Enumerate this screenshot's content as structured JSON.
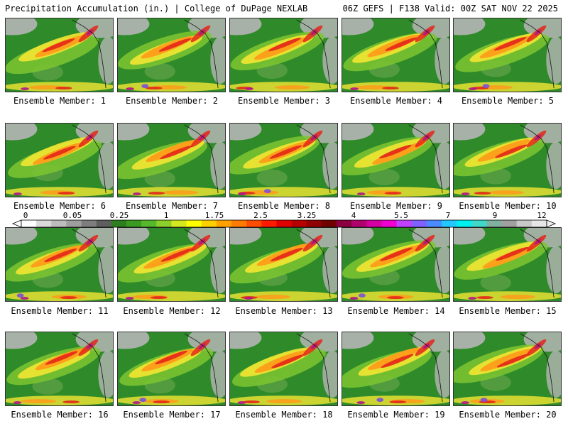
{
  "header": {
    "title": "Precipitation Accumulation (in.) | College of DuPage NEXLAB",
    "run_info": "06Z GEFS | F138 Valid: 00Z SAT NOV 22 2025"
  },
  "panels": [
    {
      "caption": "Ensemble Member: 1"
    },
    {
      "caption": "Ensemble Member: 2"
    },
    {
      "caption": "Ensemble Member: 3"
    },
    {
      "caption": "Ensemble Member: 4"
    },
    {
      "caption": "Ensemble Member: 5"
    },
    {
      "caption": "Ensemble Member: 6"
    },
    {
      "caption": "Ensemble Member: 7"
    },
    {
      "caption": "Ensemble Member: 8"
    },
    {
      "caption": "Ensemble Member: 9"
    },
    {
      "caption": "Ensemble Member: 10"
    },
    {
      "caption": "Ensemble Member: 11"
    },
    {
      "caption": "Ensemble Member: 12"
    },
    {
      "caption": "Ensemble Member: 13"
    },
    {
      "caption": "Ensemble Member: 14"
    },
    {
      "caption": "Ensemble Member: 15"
    },
    {
      "caption": "Ensemble Member: 16"
    },
    {
      "caption": "Ensemble Member: 17"
    },
    {
      "caption": "Ensemble Member: 18"
    },
    {
      "caption": "Ensemble Member: 19"
    },
    {
      "caption": "Ensemble Member: 20"
    }
  ],
  "colorbar": {
    "labels": [
      "0",
      "0.05",
      "0.25",
      "1",
      "1.75",
      "2.5",
      "3.25",
      "4",
      "5.5",
      "7",
      "9",
      "12"
    ],
    "colors": [
      "#ffffff",
      "#d9d9d9",
      "#bdbdbd",
      "#9e9e9e",
      "#7d7d7d",
      "#5e5e5e",
      "#2e7d1e",
      "#3a9a22",
      "#56b82b",
      "#8ccf2a",
      "#d4e81f",
      "#ffff00",
      "#ffd000",
      "#ffa200",
      "#ff7a00",
      "#ff4d00",
      "#ff1a00",
      "#e00000",
      "#b80000",
      "#900000",
      "#700000",
      "#8a0040",
      "#b0006b",
      "#d400a0",
      "#f000d0",
      "#c040ff",
      "#8060ff",
      "#4a8cff",
      "#22c8ff",
      "#00f0f0",
      "#40d8c8",
      "#80b0a0",
      "#a0a0a0",
      "#c8c8c8",
      "#e6e6e6"
    ]
  },
  "map_colors": {
    "land_gray": "#b5b5b5",
    "ocean_green": "#2f8a2a",
    "light_green": "#7cc530",
    "yellow": "#f2e632",
    "orange": "#ff9a1a",
    "red": "#e3261a",
    "magenta": "#b0148a",
    "purple": "#7a50d8"
  }
}
